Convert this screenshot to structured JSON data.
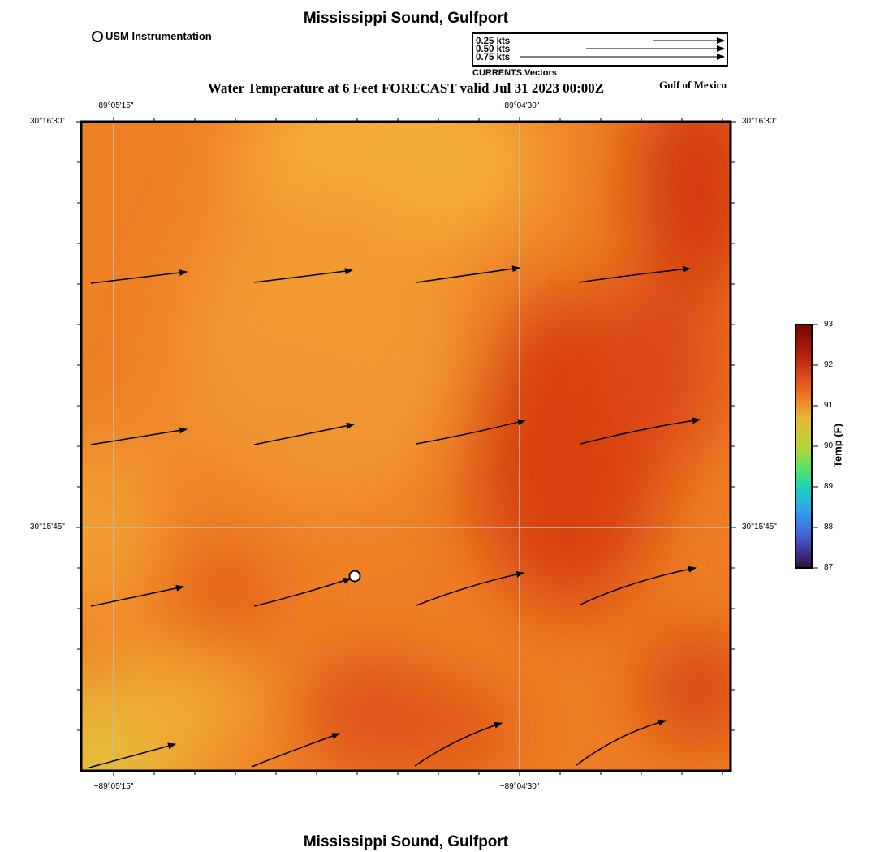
{
  "header": {
    "title": "Mississippi Sound, Gulfport"
  },
  "footer": {
    "title": "Mississippi Sound, Gulfport"
  },
  "legend": {
    "station_label": "USM Instrumentation"
  },
  "vector_scale": {
    "rows": [
      "0.25 kts",
      "0.50 kts",
      "0.75 kts"
    ],
    "caption": "CURRENTS Vectors"
  },
  "map": {
    "title": "Water Temperature at 6 Feet FORECAST valid Jul 31 2023 00:00Z",
    "region_label": "Gulf of Mexico",
    "top_lon_labels": [
      "−89°05'15\"",
      "−89°04'30\""
    ],
    "bottom_lon_labels": [
      "−89°05'15\"",
      "−89°04'30\""
    ],
    "left_lat_labels": [
      "30°16'30\"",
      "30°15'45\""
    ],
    "right_lat_labels": [
      "30°16'30\"",
      "30°15'45\""
    ]
  },
  "colorbar": {
    "title": "Temp (F)",
    "ticks": [
      "93",
      "92",
      "91",
      "90",
      "89",
      "88",
      "87"
    ]
  },
  "colors": {
    "temp_hot": "#d33d0a",
    "temp_mid": "#ee8026",
    "temp_warm": "#f4a534",
    "temp_cool": "#e0c03a",
    "grid": "#bdbdbd",
    "station_marker": "#ffffff"
  }
}
